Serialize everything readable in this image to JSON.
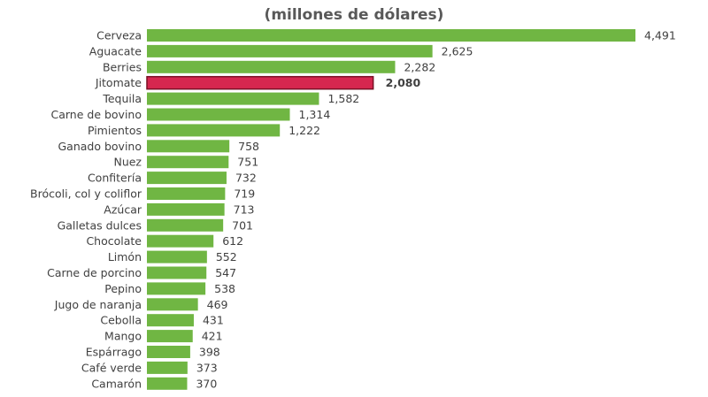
{
  "chart_data": {
    "type": "bar",
    "orientation": "horizontal",
    "subtitle": "(millones de dólares)",
    "categories": [
      "Cerveza",
      "Aguacate",
      "Berries",
      "Jitomate",
      "Tequila",
      "Carne de bovino",
      "Pimientos",
      "Ganado bovino",
      "Nuez",
      "Confitería",
      "Brócoli, col y coliflor",
      "Azúcar",
      "Galletas dulces",
      "Chocolate",
      "Limón",
      "Carne de porcino",
      "Pepino",
      "Jugo de naranja",
      "Cebolla",
      "Mango",
      "Espárrago",
      "Café verde",
      "Camarón"
    ],
    "values": [
      4491,
      2625,
      2282,
      2080,
      1582,
      1314,
      1222,
      758,
      751,
      732,
      719,
      713,
      701,
      612,
      552,
      547,
      538,
      469,
      431,
      421,
      398,
      373,
      370
    ],
    "value_labels": [
      "4,491",
      "2,625",
      "2,282",
      "2,080",
      "1,582",
      "1,314",
      "1,222",
      "758",
      "751",
      "732",
      "719",
      "713",
      "701",
      "612",
      "552",
      "547",
      "538",
      "469",
      "431",
      "421",
      "398",
      "373",
      "370"
    ],
    "highlighted": "Jitomate",
    "colors": {
      "bar": "#70b643",
      "highlight": "#d6274f",
      "highlight_border": "#7a0f24"
    },
    "grid": false,
    "legend": "none"
  }
}
